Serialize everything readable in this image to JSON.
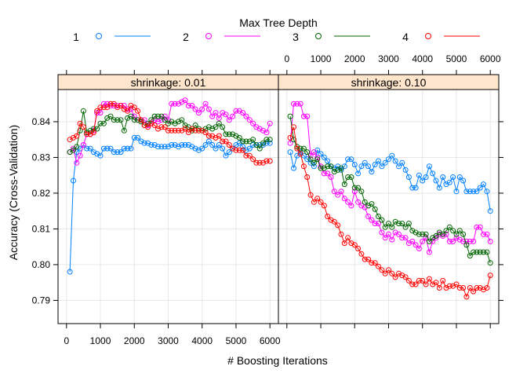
{
  "chart_data": {
    "type": "line",
    "title": "",
    "xlabel": "# Boosting Iterations",
    "ylabel": "Accuracy (Cross-Validation)",
    "xlim": [
      -250,
      6250
    ],
    "ylim": [
      0.7835,
      0.849
    ],
    "x_ticks": [
      0,
      1000,
      2000,
      3000,
      4000,
      5000,
      6000
    ],
    "y_ticks": [
      0.79,
      0.8,
      0.81,
      0.82,
      0.83,
      0.84
    ],
    "y_tick_labels": [
      "0.79",
      "0.80",
      "0.81",
      "0.82",
      "0.83",
      "0.84"
    ],
    "grid": true,
    "legend": {
      "title": "Max Tree Depth",
      "placement": "top",
      "entries": [
        {
          "label": "1",
          "color": "#0080ff"
        },
        {
          "label": "2",
          "color": "#ff00ff"
        },
        {
          "label": "3",
          "color": "#006400"
        },
        {
          "label": "4",
          "color": "#ff0000"
        }
      ]
    },
    "x": [
      100,
      200,
      300,
      400,
      500,
      600,
      700,
      800,
      900,
      1000,
      1100,
      1200,
      1300,
      1400,
      1500,
      1600,
      1700,
      1800,
      1900,
      2000,
      2100,
      2200,
      2300,
      2400,
      2500,
      2600,
      2700,
      2800,
      2900,
      3000,
      3100,
      3200,
      3300,
      3400,
      3500,
      3600,
      3700,
      3800,
      3900,
      4000,
      4100,
      4200,
      4300,
      4400,
      4500,
      4600,
      4700,
      4800,
      4900,
      5000,
      5100,
      5200,
      5300,
      5400,
      5500,
      5600,
      5700,
      5800,
      5900,
      6000
    ],
    "panels": [
      {
        "strip": "shrinkage: 0.01",
        "series": [
          {
            "name": "1",
            "values": [
              0.798,
              0.8235,
              0.8315,
              0.8325,
              0.8335,
              0.8325,
              0.8325,
              0.8315,
              0.831,
              0.8305,
              0.8325,
              0.8325,
              0.8325,
              0.8315,
              0.8315,
              0.8315,
              0.8325,
              0.8325,
              0.8325,
              0.8355,
              0.8355,
              0.8345,
              0.834,
              0.834,
              0.8335,
              0.8335,
              0.833,
              0.833,
              0.833,
              0.833,
              0.8335,
              0.8335,
              0.833,
              0.8335,
              0.8335,
              0.8335,
              0.833,
              0.8325,
              0.832,
              0.8325,
              0.8335,
              0.8345,
              0.8335,
              0.8325,
              0.8335,
              0.8325,
              0.8305,
              0.8315,
              0.8325,
              0.8335,
              0.834,
              0.833,
              0.832,
              0.8325,
              0.8335,
              0.8335,
              0.8335,
              0.8335,
              0.834,
              0.834
            ]
          },
          {
            "name": "2",
            "values": [
              0.8315,
              0.8325,
              0.8285,
              0.8305,
              0.8335,
              0.8365,
              0.8365,
              0.8375,
              0.8425,
              0.8425,
              0.845,
              0.845,
              0.8445,
              0.8445,
              0.8445,
              0.8445,
              0.8445,
              0.8435,
              0.8435,
              0.8415,
              0.8405,
              0.8405,
              0.8405,
              0.839,
              0.8395,
              0.8405,
              0.84,
              0.8405,
              0.8415,
              0.8405,
              0.845,
              0.845,
              0.845,
              0.8455,
              0.846,
              0.8445,
              0.8445,
              0.8435,
              0.8425,
              0.8435,
              0.845,
              0.8435,
              0.8415,
              0.8425,
              0.841,
              0.8425,
              0.842,
              0.8405,
              0.8415,
              0.843,
              0.843,
              0.8425,
              0.8415,
              0.8405,
              0.8395,
              0.8385,
              0.838,
              0.8375,
              0.837,
              0.8395
            ]
          },
          {
            "name": "3",
            "values": [
              0.8315,
              0.832,
              0.833,
              0.8375,
              0.843,
              0.837,
              0.8375,
              0.838,
              0.838,
              0.8395,
              0.8395,
              0.841,
              0.8415,
              0.8405,
              0.8405,
              0.8405,
              0.8375,
              0.841,
              0.8415,
              0.8405,
              0.8405,
              0.84,
              0.839,
              0.8395,
              0.8405,
              0.8415,
              0.8415,
              0.8415,
              0.8405,
              0.8395,
              0.84,
              0.8395,
              0.84,
              0.8405,
              0.839,
              0.8385,
              0.8375,
              0.839,
              0.838,
              0.8375,
              0.838,
              0.8385,
              0.838,
              0.8385,
              0.8395,
              0.8385,
              0.8365,
              0.8365,
              0.8365,
              0.836,
              0.8355,
              0.8345,
              0.8345,
              0.8345,
              0.835,
              0.8335,
              0.8325,
              0.834,
              0.835,
              0.835
            ]
          },
          {
            "name": "4",
            "values": [
              0.835,
              0.8355,
              0.836,
              0.8395,
              0.8385,
              0.8365,
              0.8365,
              0.837,
              0.843,
              0.844,
              0.844,
              0.844,
              0.845,
              0.845,
              0.844,
              0.8445,
              0.8435,
              0.843,
              0.8445,
              0.844,
              0.843,
              0.8405,
              0.839,
              0.8385,
              0.8395,
              0.839,
              0.838,
              0.8385,
              0.8385,
              0.8375,
              0.8375,
              0.8375,
              0.8375,
              0.8375,
              0.838,
              0.837,
              0.838,
              0.8375,
              0.8375,
              0.8375,
              0.837,
              0.836,
              0.836,
              0.8355,
              0.836,
              0.8345,
              0.8345,
              0.8335,
              0.8325,
              0.832,
              0.832,
              0.832,
              0.8305,
              0.8305,
              0.8295,
              0.8285,
              0.8285,
              0.8285,
              0.829,
              0.829
            ]
          }
        ]
      },
      {
        "strip": "shrinkage: 0.10",
        "series": [
          {
            "name": "1",
            "values": [
              0.8315,
              0.827,
              0.8305,
              0.8315,
              0.8305,
              0.8295,
              0.8285,
              0.8275,
              0.832,
              0.831,
              0.83,
              0.829,
              0.8275,
              0.827,
              0.8275,
              0.8265,
              0.8275,
              0.8295,
              0.8295,
              0.828,
              0.8255,
              0.8275,
              0.8285,
              0.8275,
              0.826,
              0.828,
              0.829,
              0.8275,
              0.8285,
              0.8295,
              0.8305,
              0.829,
              0.8275,
              0.8285,
              0.8265,
              0.8245,
              0.8215,
              0.8215,
              0.825,
              0.8235,
              0.8245,
              0.8275,
              0.8255,
              0.8235,
              0.8215,
              0.8245,
              0.8225,
              0.823,
              0.8245,
              0.8205,
              0.8245,
              0.8235,
              0.8205,
              0.8205,
              0.8205,
              0.8205,
              0.8215,
              0.8225,
              0.8205,
              0.815
            ]
          },
          {
            "name": "2",
            "values": [
              0.834,
              0.845,
              0.845,
              0.845,
              0.8415,
              0.8415,
              0.8305,
              0.8315,
              0.83,
              0.8275,
              0.8255,
              0.8255,
              0.8245,
              0.8205,
              0.8195,
              0.8205,
              0.8185,
              0.8175,
              0.8165,
              0.8205,
              0.8175,
              0.8165,
              0.816,
              0.8135,
              0.8125,
              0.8115,
              0.8115,
              0.809,
              0.8075,
              0.8085,
              0.807,
              0.809,
              0.8085,
              0.8075,
              0.8075,
              0.806,
              0.8065,
              0.8055,
              0.8045,
              0.8065,
              0.8075,
              0.8035,
              0.8065,
              0.8075,
              0.8085,
              0.808,
              0.8085,
              0.8065,
              0.8065,
              0.8075,
              0.807,
              0.8065,
              0.8065,
              0.8065,
              0.8065,
              0.8105,
              0.8105,
              0.8085,
              0.8085,
              0.8065
            ]
          },
          {
            "name": "3",
            "values": [
              0.8415,
              0.835,
              0.833,
              0.8325,
              0.8325,
              0.8315,
              0.8295,
              0.8285,
              0.8295,
              0.827,
              0.827,
              0.8275,
              0.8275,
              0.826,
              0.8265,
              0.827,
              0.8225,
              0.8245,
              0.8245,
              0.8215,
              0.8215,
              0.8205,
              0.8175,
              0.8165,
              0.817,
              0.8155,
              0.8135,
              0.8125,
              0.8105,
              0.8115,
              0.8105,
              0.812,
              0.8115,
              0.8115,
              0.8105,
              0.8115,
              0.8095,
              0.809,
              0.8085,
              0.8085,
              0.8085,
              0.8065,
              0.8075,
              0.808,
              0.809,
              0.8085,
              0.8095,
              0.8105,
              0.8095,
              0.8085,
              0.8095,
              0.8085,
              0.8055,
              0.8025,
              0.8035,
              0.8035,
              0.8035,
              0.8035,
              0.8035,
              0.8005
            ]
          },
          {
            "name": "4",
            "values": [
              0.8355,
              0.8385,
              0.8325,
              0.831,
              0.8275,
              0.8245,
              0.8195,
              0.8175,
              0.8185,
              0.8175,
              0.8165,
              0.8135,
              0.8125,
              0.812,
              0.811,
              0.8085,
              0.806,
              0.8075,
              0.806,
              0.8055,
              0.8045,
              0.803,
              0.8015,
              0.8015,
              0.8005,
              0.8005,
              0.7995,
              0.7985,
              0.7975,
              0.7985,
              0.7975,
              0.7965,
              0.7975,
              0.797,
              0.7965,
              0.7955,
              0.7945,
              0.7945,
              0.7955,
              0.7955,
              0.7945,
              0.796,
              0.7945,
              0.795,
              0.7935,
              0.7955,
              0.7935,
              0.794,
              0.794,
              0.7945,
              0.7935,
              0.7935,
              0.791,
              0.7935,
              0.7925,
              0.7935,
              0.7935,
              0.793,
              0.7935,
              0.797
            ]
          }
        ]
      }
    ]
  }
}
